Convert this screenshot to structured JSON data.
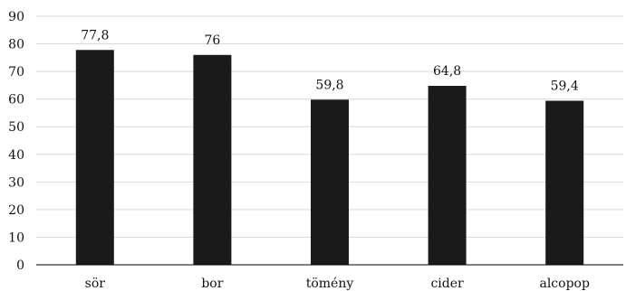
{
  "chart_data": {
    "type": "bar",
    "title": "",
    "xlabel": "",
    "ylabel": "",
    "categories": [
      "sör",
      "bor",
      "tömény",
      "cider",
      "alcopop"
    ],
    "values": [
      77.8,
      76,
      59.8,
      64.8,
      59.4
    ],
    "data_labels": [
      "77,8",
      "76",
      "59,8",
      "64,8",
      "59,4"
    ],
    "ylim": [
      0,
      90
    ],
    "yticks": [
      0,
      10,
      20,
      30,
      40,
      50,
      60,
      70,
      80,
      90
    ],
    "grid": true,
    "legend": "none",
    "bar_color": "#1a1a1a",
    "grid_color": "#d9d9d9",
    "axis_color": "#000000"
  }
}
